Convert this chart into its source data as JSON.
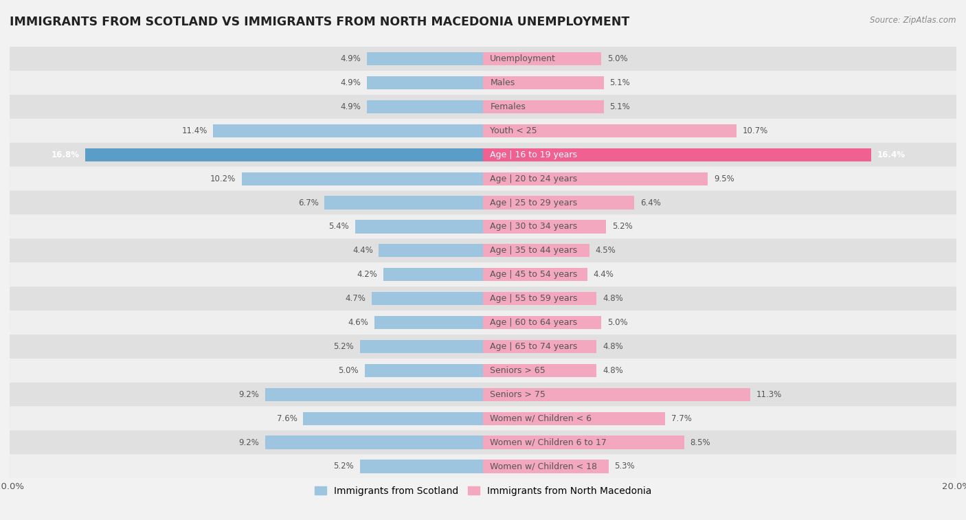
{
  "title": "IMMIGRANTS FROM SCOTLAND VS IMMIGRANTS FROM NORTH MACEDONIA UNEMPLOYMENT",
  "source": "Source: ZipAtlas.com",
  "categories": [
    "Unemployment",
    "Males",
    "Females",
    "Youth < 25",
    "Age | 16 to 19 years",
    "Age | 20 to 24 years",
    "Age | 25 to 29 years",
    "Age | 30 to 34 years",
    "Age | 35 to 44 years",
    "Age | 45 to 54 years",
    "Age | 55 to 59 years",
    "Age | 60 to 64 years",
    "Age | 65 to 74 years",
    "Seniors > 65",
    "Seniors > 75",
    "Women w/ Children < 6",
    "Women w/ Children 6 to 17",
    "Women w/ Children < 18"
  ],
  "scotland_values": [
    4.9,
    4.9,
    4.9,
    11.4,
    16.8,
    10.2,
    6.7,
    5.4,
    4.4,
    4.2,
    4.7,
    4.6,
    5.2,
    5.0,
    9.2,
    7.6,
    9.2,
    5.2
  ],
  "macedonia_values": [
    5.0,
    5.1,
    5.1,
    10.7,
    16.4,
    9.5,
    6.4,
    5.2,
    4.5,
    4.4,
    4.8,
    5.0,
    4.8,
    4.8,
    11.3,
    7.7,
    8.5,
    5.3
  ],
  "scotland_color": "#9ec5e0",
  "macedonia_color": "#f4a8c0",
  "scotland_highlight_color": "#5a9ec8",
  "macedonia_highlight_color": "#f06090",
  "background_color": "#f2f2f2",
  "row_color_dark": "#e0e0e0",
  "row_color_light": "#efefef",
  "axis_limit": 20.0,
  "bar_height": 0.55,
  "legend_label_scotland": "Immigrants from Scotland",
  "legend_label_macedonia": "Immigrants from North Macedonia",
  "title_fontsize": 12.5,
  "label_fontsize": 9.0,
  "value_fontsize": 8.5,
  "highlight_idx": 4
}
